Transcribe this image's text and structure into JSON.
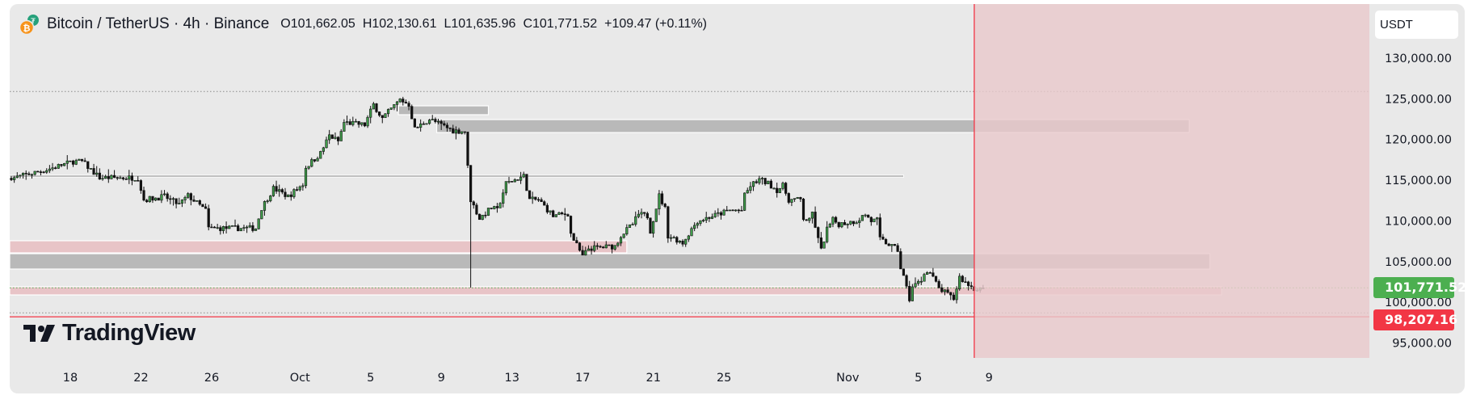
{
  "header": {
    "symbol": "Bitcoin / TetherUS · 4h · Binance",
    "open": "O101,662.05",
    "high": "H102,130.61",
    "low": "L101,635.96",
    "close": "C101,771.52",
    "change": "+109.47 (+0.11%)"
  },
  "price_axis": {
    "currency": "USDT",
    "ticks": [
      "130,000.00",
      "125,000.00",
      "120,000.00",
      "115,000.00",
      "110,000.00",
      "105,000.00",
      "100,000.00",
      "95,000.00"
    ],
    "tick_values": [
      130000,
      125000,
      120000,
      115000,
      110000,
      105000,
      100000,
      95000
    ],
    "last_price_label": "101,771.52",
    "alert_price_label": "98,207.16"
  },
  "time_axis": {
    "labels": [
      {
        "text": "18",
        "day": 0
      },
      {
        "text": "22",
        "day": 4
      },
      {
        "text": "26",
        "day": 8
      },
      {
        "text": "Oct",
        "day": 13
      },
      {
        "text": "5",
        "day": 17
      },
      {
        "text": "9",
        "day": 21
      },
      {
        "text": "13",
        "day": 25
      },
      {
        "text": "17",
        "day": 29
      },
      {
        "text": "21",
        "day": 33
      },
      {
        "text": "25",
        "day": 37
      },
      {
        "text": "Nov",
        "day": 44
      },
      {
        "text": "5",
        "day": 48
      },
      {
        "text": "9",
        "day": 52
      }
    ]
  },
  "logo": {
    "text": "TradingView"
  },
  "colors": {
    "up": "#3f9c4a",
    "down": "#111111",
    "gray_zone": "#b9b9b9",
    "pink_zone": "#e8c4c7",
    "last_price": "#4caf50",
    "alert": "#f23645",
    "highlight": "#e9c9cc"
  },
  "chart_data": {
    "type": "candlestick",
    "symbol": "BTCUSDT",
    "interval": "4h",
    "candles_per_day": 6,
    "close_path": [
      [
        0,
        115400
      ],
      [
        1,
        115300
      ],
      [
        12,
        116300
      ],
      [
        21,
        117300
      ],
      [
        24,
        117300
      ],
      [
        30,
        115300
      ],
      [
        43,
        115300
      ],
      [
        45,
        112600
      ],
      [
        52,
        113000
      ],
      [
        57,
        112000
      ],
      [
        60,
        113100
      ],
      [
        66,
        111300
      ],
      [
        67,
        109100
      ],
      [
        83,
        109100
      ],
      [
        85,
        111600
      ],
      [
        89,
        114000
      ],
      [
        94,
        113000
      ],
      [
        99,
        114500
      ],
      [
        100,
        116600
      ],
      [
        105,
        118300
      ],
      [
        108,
        120500
      ],
      [
        111,
        119800
      ],
      [
        113,
        122100
      ],
      [
        120,
        121800
      ],
      [
        123,
        124300
      ],
      [
        126,
        122600
      ],
      [
        132,
        124900
      ],
      [
        135,
        124300
      ],
      [
        137,
        121300
      ],
      [
        142,
        122500
      ],
      [
        146,
        121800
      ],
      [
        150,
        121100
      ],
      [
        154,
        121000
      ],
      [
        155,
        116600
      ],
      [
        156,
        112600
      ],
      [
        159,
        110300
      ],
      [
        163,
        111600
      ],
      [
        165,
        111300
      ],
      [
        168,
        114600
      ],
      [
        174,
        115500
      ],
      [
        176,
        112600
      ],
      [
        179,
        112600
      ],
      [
        184,
        110600
      ],
      [
        189,
        110900
      ],
      [
        190,
        108400
      ],
      [
        194,
        105600
      ],
      [
        196,
        106600
      ],
      [
        205,
        106900
      ],
      [
        207,
        108200
      ],
      [
        211,
        109600
      ],
      [
        213,
        110800
      ],
      [
        216,
        110600
      ],
      [
        217,
        108800
      ],
      [
        220,
        113100
      ],
      [
        222,
        111500
      ],
      [
        223,
        108200
      ],
      [
        226,
        107700
      ],
      [
        228,
        107300
      ],
      [
        231,
        109000
      ],
      [
        233,
        110000
      ],
      [
        240,
        110800
      ],
      [
        244,
        111300
      ],
      [
        248,
        111300
      ],
      [
        249,
        113100
      ],
      [
        251,
        114300
      ],
      [
        254,
        115100
      ],
      [
        257,
        114600
      ],
      [
        260,
        113800
      ],
      [
        262,
        114300
      ],
      [
        264,
        112600
      ],
      [
        268,
        112600
      ],
      [
        269,
        110300
      ],
      [
        271,
        110000
      ],
      [
        272,
        111000
      ],
      [
        274,
        107700
      ],
      [
        275,
        106400
      ],
      [
        277,
        109000
      ],
      [
        279,
        110100
      ],
      [
        281,
        109600
      ],
      [
        287,
        110000
      ],
      [
        290,
        110800
      ],
      [
        292,
        110000
      ],
      [
        294,
        110100
      ],
      [
        295,
        107700
      ],
      [
        298,
        107100
      ],
      [
        301,
        106400
      ],
      [
        302,
        104200
      ],
      [
        303,
        103100
      ],
      [
        305,
        100400
      ],
      [
        306,
        101900
      ],
      [
        309,
        102700
      ],
      [
        310,
        103700
      ],
      [
        312,
        103600
      ],
      [
        315,
        101700
      ],
      [
        317,
        101200
      ],
      [
        320,
        100400
      ],
      [
        322,
        103100
      ],
      [
        324,
        102400
      ],
      [
        327,
        101700
      ],
      [
        330,
        101771.52
      ]
    ],
    "wick_overrides": [
      {
        "index": 156,
        "low": 101800
      }
    ],
    "last_candle": {
      "open": 101662.05,
      "high": 102130.61,
      "low": 101635.96,
      "close": 101771.52
    },
    "y_range": [
      93500,
      133500
    ],
    "zones": [
      {
        "kind": "gray",
        "from": 132,
        "to": 162,
        "top": 124140,
        "bottom": 123050
      },
      {
        "kind": "gray",
        "from": 145,
        "to": 400,
        "top": 122450,
        "bottom": 120860
      },
      {
        "kind": "gray",
        "from": 0,
        "to": 209,
        "top": 107560,
        "bottom": 106070,
        "pink": true
      },
      {
        "kind": "gray",
        "from": 0,
        "to": 407,
        "top": 105970,
        "bottom": 104080
      },
      {
        "kind": "pink",
        "from": 0,
        "to": 411,
        "top": 101900,
        "bottom": 100900
      }
    ],
    "level_line": {
      "from": 0,
      "to": 303,
      "price": 115500
    },
    "dotted_levels": [
      125900,
      98700
    ],
    "last_price": 101771.52,
    "alert_price": 98207.16,
    "session_marker_index": 327
  }
}
